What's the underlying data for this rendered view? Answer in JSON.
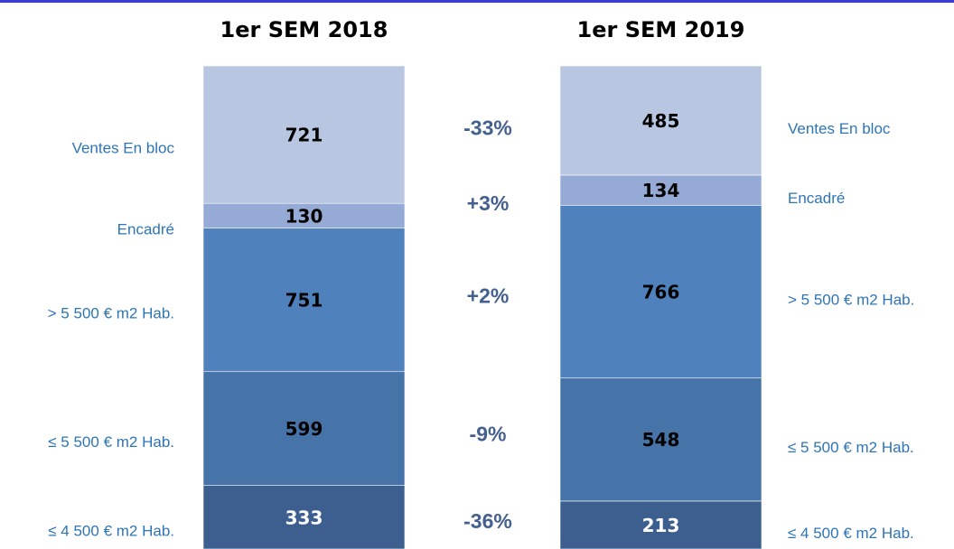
{
  "chart_data": {
    "type": "bar",
    "stacked": "percent",
    "categories": [
      "1er SEM 2018",
      "1er SEM 2019"
    ],
    "series": [
      {
        "name": "≤ 4 500 €  m2 Hab.",
        "color": "#3d5f8f",
        "values": [
          333,
          213
        ],
        "change": "-36%"
      },
      {
        "name": "≤ 5 500 €  m2 Hab.",
        "color": "#4673a8",
        "values": [
          599,
          548
        ],
        "change": "-9%"
      },
      {
        "name": "> 5 500 €  m2 Hab.",
        "color": "#4f81bd",
        "values": [
          751,
          766
        ],
        "change": "+2%"
      },
      {
        "name": "Encadré",
        "color": "#95aad4",
        "values": [
          130,
          134
        ],
        "change": "+3%"
      },
      {
        "name": "Ventes En bloc",
        "color": "#b9c6e2",
        "values": [
          721,
          485
        ],
        "change": "-33%"
      }
    ]
  }
}
